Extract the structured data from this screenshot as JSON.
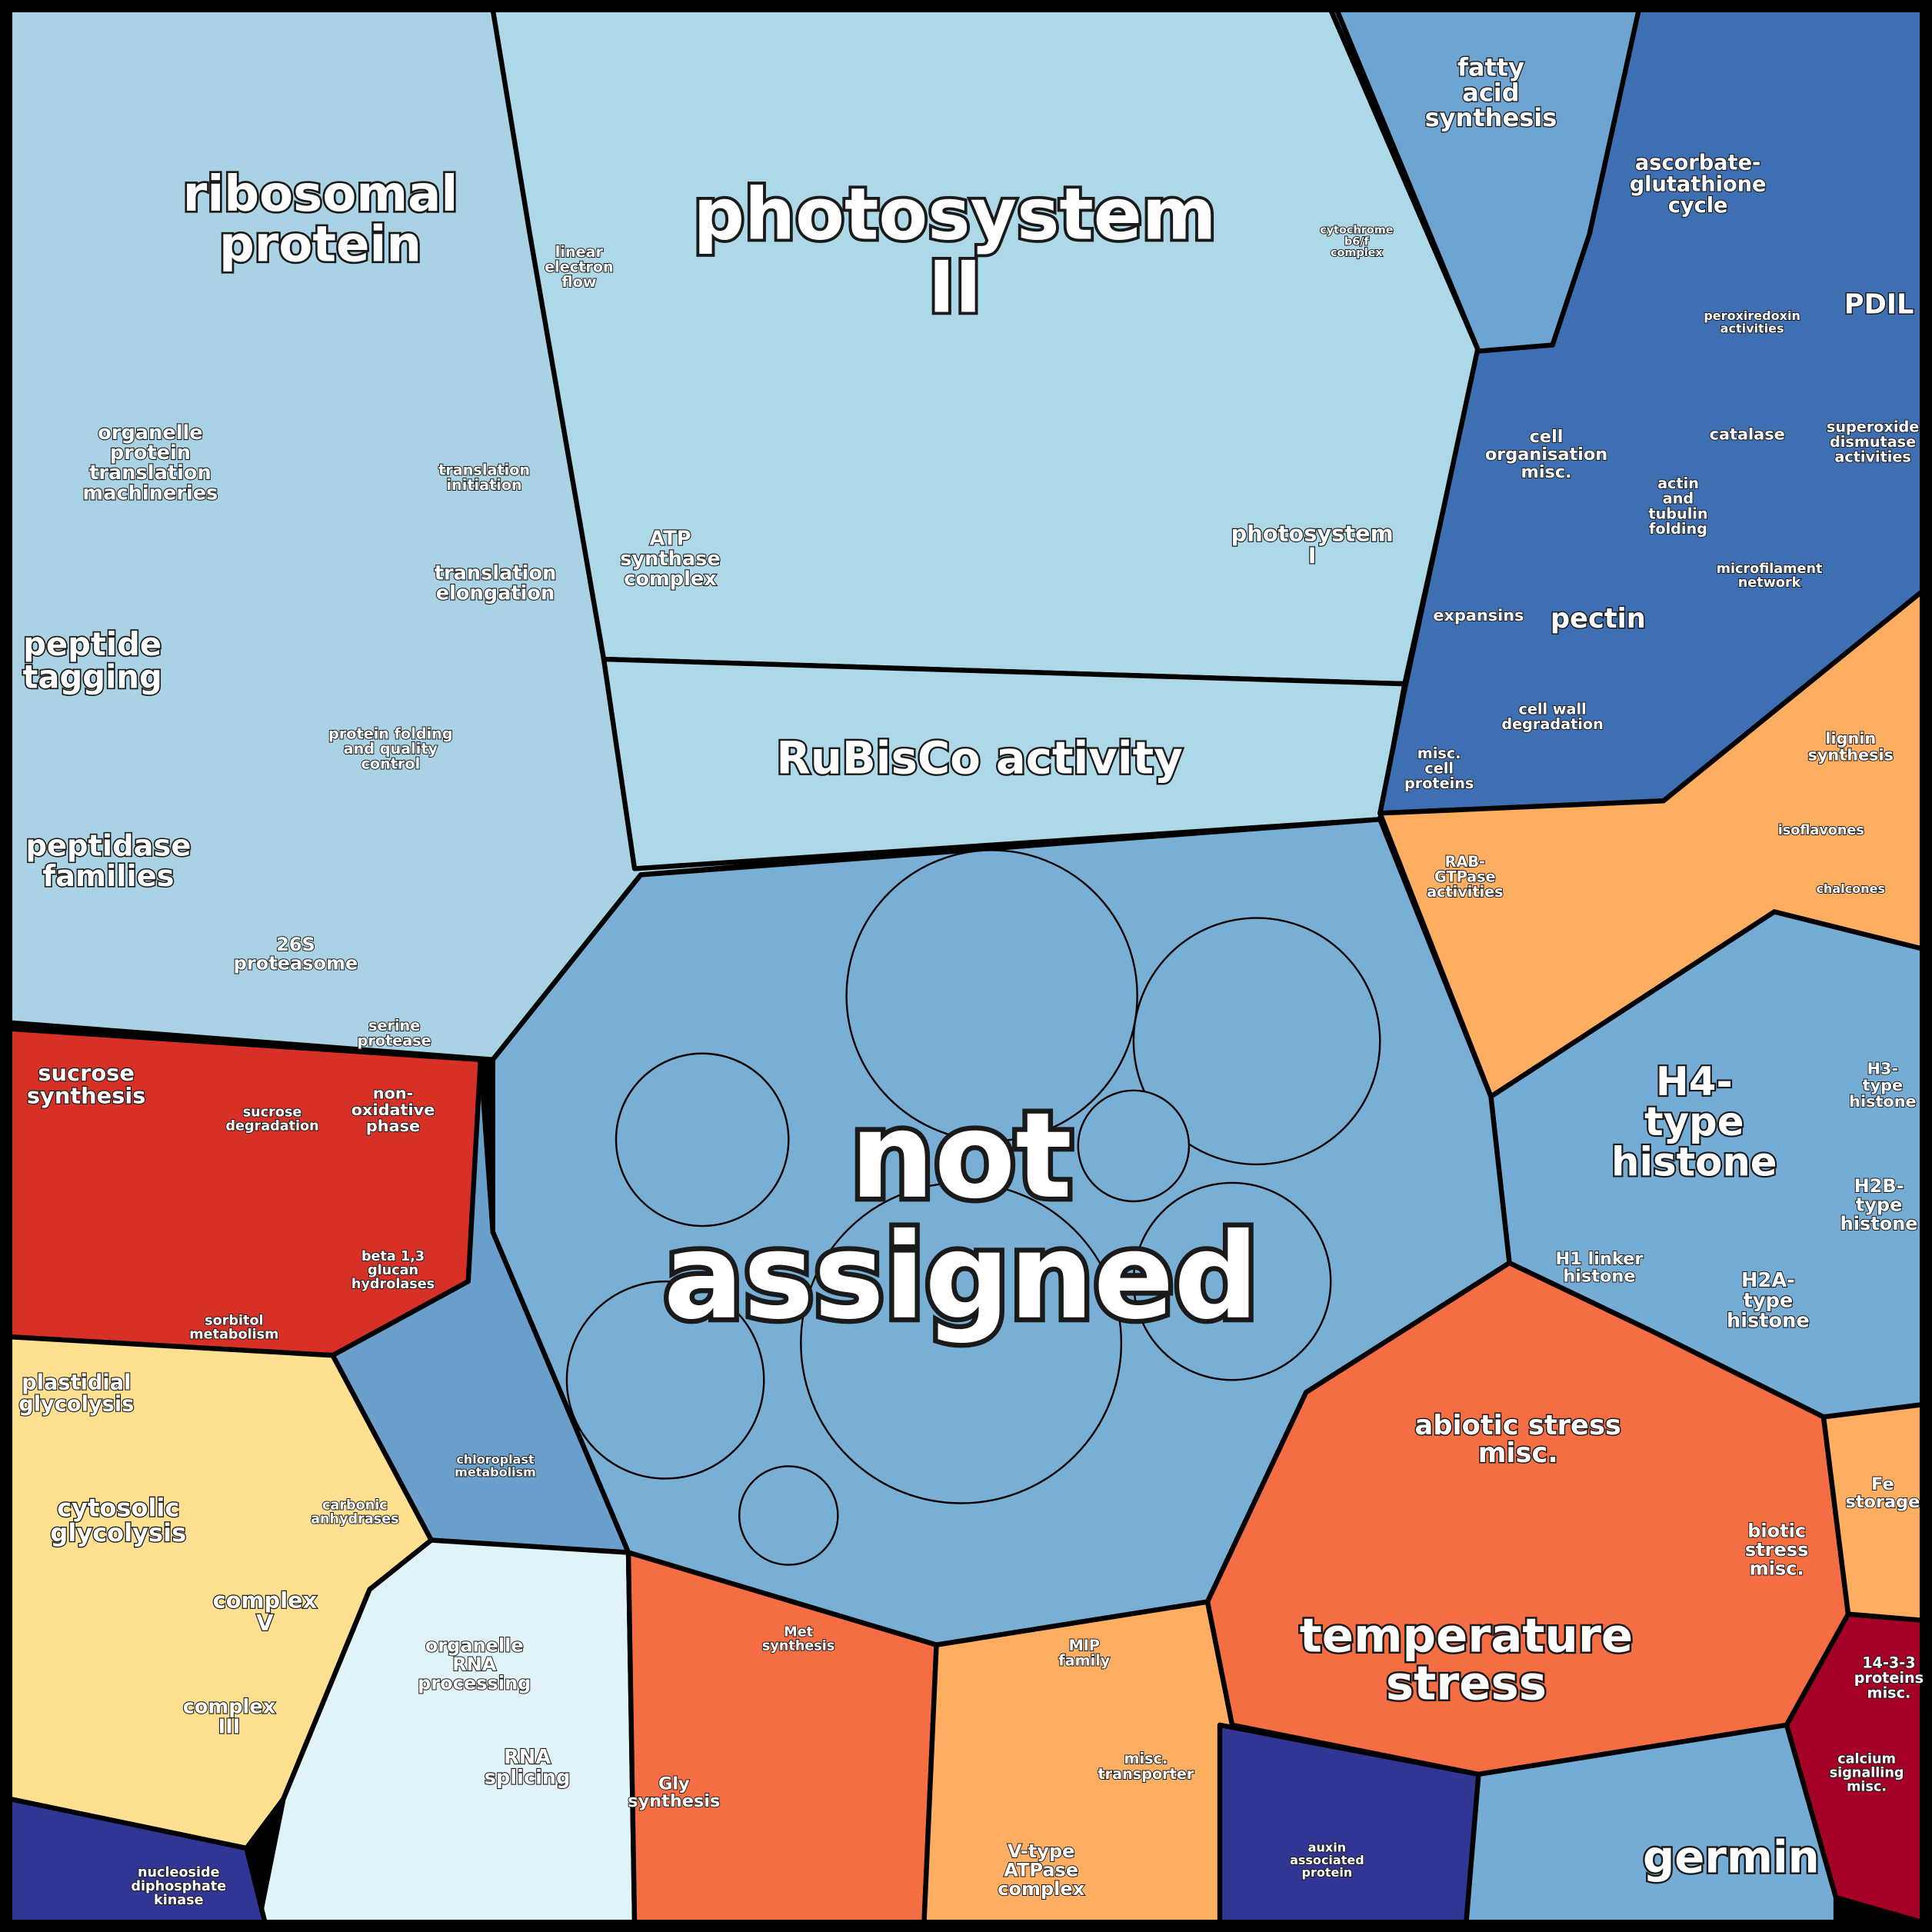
{
  "labels": [
    {
      "lines": [
        "photosystem",
        "II"
      ]
    },
    {
      "lines": [
        "not",
        "assigned"
      ]
    },
    {
      "lines": [
        "ribosomal",
        "protein"
      ]
    },
    {
      "lines": [
        "RuBisCo activity"
      ]
    },
    {
      "lines": [
        "temperature",
        "stress"
      ]
    },
    {
      "lines": [
        "H4-",
        "type",
        "histone"
      ]
    },
    {
      "lines": [
        "abiotic stress",
        "misc."
      ]
    },
    {
      "lines": [
        "germin"
      ]
    },
    {
      "lines": [
        "peptide",
        "tagging"
      ]
    },
    {
      "lines": [
        "peptidase",
        "families"
      ]
    },
    {
      "lines": [
        "organelle",
        "protein",
        "translation",
        "machineries"
      ]
    },
    {
      "lines": [
        "photosystem",
        "I"
      ]
    },
    {
      "lines": [
        "ATP",
        "synthase",
        "complex"
      ]
    },
    {
      "lines": [
        "sucrose",
        "synthesis"
      ]
    },
    {
      "lines": [
        "plastidial",
        "glycolysis"
      ]
    },
    {
      "lines": [
        "cytosolic",
        "glycolysis"
      ]
    },
    {
      "lines": [
        "complex",
        "V"
      ]
    },
    {
      "lines": [
        "complex",
        "III"
      ]
    },
    {
      "lines": [
        "fatty",
        "acid",
        "synthesis"
      ]
    },
    {
      "lines": [
        "ascorbate-",
        "glutathione",
        "cycle"
      ]
    },
    {
      "lines": [
        "PDIL"
      ]
    },
    {
      "lines": [
        "pectin"
      ]
    },
    {
      "lines": [
        "cell",
        "organisation",
        "misc."
      ]
    },
    {
      "lines": [
        "Gly",
        "synthesis"
      ]
    },
    {
      "lines": [
        "nucleoside",
        "diphosphate",
        "kinase"
      ]
    },
    {
      "lines": [
        "organelle",
        "RNA",
        "processing"
      ]
    },
    {
      "lines": [
        "RNA",
        "splicing"
      ]
    },
    {
      "lines": [
        "V-type",
        "ATPase",
        "complex"
      ]
    },
    {
      "lines": [
        "misc.",
        "transporter"
      ]
    },
    {
      "lines": [
        "14-3-3",
        "proteins",
        "misc."
      ]
    },
    {
      "lines": [
        "H2B-",
        "type",
        "histone"
      ]
    },
    {
      "lines": [
        "H3-",
        "type",
        "histone"
      ]
    },
    {
      "lines": [
        "H2A-",
        "type",
        "histone"
      ]
    },
    {
      "lines": [
        "H1 linker",
        "histone"
      ]
    },
    {
      "lines": [
        "26S",
        "proteasome"
      ]
    },
    {
      "lines": [
        "translation",
        "elongation"
      ]
    },
    {
      "lines": [
        "lignin",
        "synthesis"
      ]
    },
    {
      "lines": [
        "biotic",
        "stress",
        "misc."
      ]
    },
    {
      "lines": [
        "Fe",
        "storage"
      ]
    },
    {
      "lines": [
        "superoxide",
        "dismutase",
        "activities"
      ]
    },
    {
      "lines": [
        "catalase"
      ]
    },
    {
      "lines": [
        "expansins"
      ]
    },
    {
      "lines": [
        "non-",
        "oxidative",
        "phase"
      ]
    },
    {
      "lines": [
        "sucrose",
        "degradation"
      ]
    },
    {
      "lines": [
        "protein folding",
        "and quality",
        "control"
      ]
    },
    {
      "lines": [
        "linear",
        "electron",
        "flow"
      ]
    },
    {
      "lines": [
        "cytochrome",
        "b6/f",
        "complex"
      ]
    },
    {
      "lines": [
        "cell wall",
        "degradation"
      ]
    },
    {
      "lines": [
        "misc.",
        "cell",
        "proteins"
      ]
    },
    {
      "lines": [
        "auxin",
        "associated",
        "protein"
      ]
    },
    {
      "lines": [
        "calcium",
        "signalling",
        "misc."
      ]
    },
    {
      "lines": [
        "Met",
        "synthesis"
      ]
    },
    {
      "lines": [
        "actin",
        "and",
        "tubulin",
        "folding"
      ]
    },
    {
      "lines": [
        "microfilament",
        "network"
      ]
    },
    {
      "lines": [
        "translation",
        "initiation"
      ]
    },
    {
      "lines": [
        "carbonic",
        "anhydrases"
      ]
    },
    {
      "lines": [
        "beta 1,3",
        "glucan",
        "hydrolases"
      ]
    },
    {
      "lines": [
        "RAB-",
        "GTPase",
        "activities"
      ]
    },
    {
      "lines": [
        "MIP",
        "family"
      ]
    },
    {
      "lines": [
        "serine",
        "protease"
      ]
    },
    {
      "lines": [
        "sorbitol",
        "metabolism"
      ]
    },
    {
      "lines": [
        "isoflavones"
      ]
    },
    {
      "lines": [
        "chalcones"
      ]
    },
    {
      "lines": [
        "peroxiredoxin",
        "activities"
      ]
    },
    {
      "lines": [
        "chloroplast",
        "metabolism"
      ]
    }
  ]
}
